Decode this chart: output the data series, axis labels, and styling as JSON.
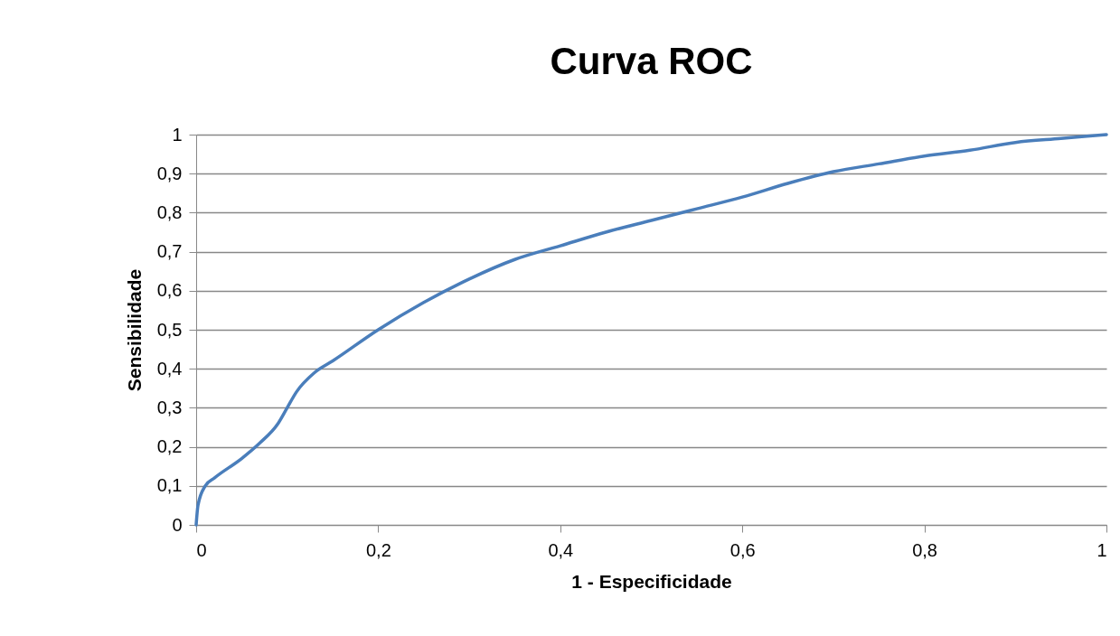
{
  "chart_data": {
    "type": "line",
    "title": "Curva ROC",
    "xlabel": "1 - Especificidade",
    "ylabel": "Sensibilidade",
    "x": [
      0,
      0.002,
      0.01,
      0.02,
      0.05,
      0.07,
      0.09,
      0.1,
      0.11,
      0.13,
      0.15,
      0.2,
      0.25,
      0.3,
      0.35,
      0.4,
      0.45,
      0.5,
      0.55,
      0.6,
      0.65,
      0.7,
      0.75,
      0.8,
      0.85,
      0.9,
      0.95,
      1
    ],
    "series": [
      {
        "color": "#4a7ebb",
        "values": [
          0,
          0.05,
          0.1,
          0.12,
          0.17,
          0.21,
          0.26,
          0.3,
          0.34,
          0.39,
          0.42,
          0.5,
          0.57,
          0.63,
          0.68,
          0.715,
          0.75,
          0.78,
          0.81,
          0.84,
          0.875,
          0.905,
          0.925,
          0.945,
          0.96,
          0.98,
          0.99,
          1
        ]
      }
    ],
    "xlim": [
      0,
      1
    ],
    "ylim": [
      0,
      1
    ],
    "xticks": [
      0,
      {
        "value": 0.2,
        "label": "0,2"
      },
      {
        "value": 0.4,
        "label": "0,4"
      },
      {
        "value": 0.6,
        "label": "0,6"
      },
      {
        "value": 0.8,
        "label": "0,8"
      },
      1
    ],
    "yticks": [
      0,
      {
        "value": 0.1,
        "label": "0,1"
      },
      {
        "value": 0.2,
        "label": "0,2"
      },
      {
        "value": 0.3,
        "label": "0,3"
      },
      {
        "value": 0.4,
        "label": "0,4"
      },
      {
        "value": 0.5,
        "label": "0,5"
      },
      {
        "value": 0.6,
        "label": "0,6"
      },
      {
        "value": 0.7,
        "label": "0,7"
      },
      {
        "value": 0.8,
        "label": "0,8"
      },
      {
        "value": 0.9,
        "label": "0,9"
      },
      1
    ],
    "grid": "y",
    "marker": "none",
    "line_style": "solid"
  }
}
